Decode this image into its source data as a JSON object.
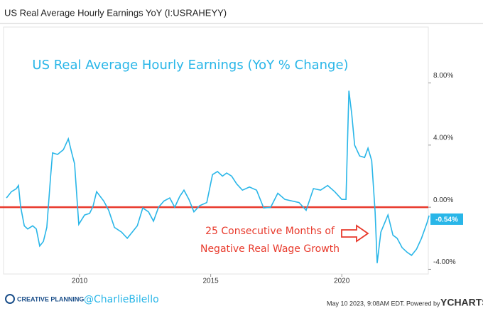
{
  "header": {
    "title": "US Real Average Hourly Earnings YoY (I:USRAHEYY)"
  },
  "chart_data": {
    "type": "line",
    "title": "US Real Average Hourly Earnings (YoY % Change)",
    "annotation": [
      "25 Consecutive Months of",
      "Negative Real Wage Growth"
    ],
    "x": [
      2007.21,
      2007.4,
      2007.59,
      2007.67,
      2007.75,
      2007.89,
      2008.02,
      2008.21,
      2008.35,
      2008.48,
      2008.62,
      2008.75,
      2008.89,
      2008.97,
      2009.16,
      2009.38,
      2009.57,
      2009.7,
      2009.81,
      2009.97,
      2010.19,
      2010.38,
      2010.51,
      2010.65,
      2010.92,
      2011.11,
      2011.33,
      2011.6,
      2011.82,
      2012.01,
      2012.2,
      2012.41,
      2012.63,
      2012.82,
      2013.01,
      2013.22,
      2013.44,
      2013.63,
      2013.82,
      2013.98,
      2014.17,
      2014.36,
      2014.58,
      2014.85,
      2015.07,
      2015.26,
      2015.45,
      2015.61,
      2015.8,
      2015.99,
      2016.21,
      2016.48,
      2016.75,
      2017.02,
      2017.29,
      2017.56,
      2017.83,
      2018.1,
      2018.37,
      2018.64,
      2018.92,
      2019.19,
      2019.46,
      2019.73,
      2020.0,
      2020.16,
      2020.27,
      2020.38,
      2020.49,
      2020.68,
      2020.87,
      2021.0,
      2021.14,
      2021.27,
      2021.35,
      2021.49,
      2021.76,
      2021.95,
      2022.11,
      2022.3,
      2022.49,
      2022.66,
      2022.85,
      2023.04,
      2023.25,
      2023.33
    ],
    "series": [
      {
        "name": "US Real Average Hourly Earnings YoY",
        "color": "#29b6e8",
        "values": [
          0.6,
          1.0,
          1.2,
          1.4,
          0.05,
          -1.2,
          -1.4,
          -1.2,
          -1.4,
          -2.5,
          -2.2,
          -1.3,
          1.9,
          3.5,
          3.4,
          3.7,
          4.4,
          3.5,
          2.8,
          -1.1,
          -0.5,
          -0.4,
          0.05,
          1.0,
          0.4,
          -0.2,
          -1.3,
          -1.6,
          -2.0,
          -1.6,
          -1.2,
          -0.05,
          -0.3,
          -0.9,
          0.0,
          0.4,
          0.6,
          0.0,
          0.7,
          1.1,
          0.5,
          -0.3,
          0.1,
          0.3,
          2.1,
          2.3,
          2.0,
          2.2,
          2.0,
          1.5,
          1.1,
          1.3,
          1.1,
          -0.05,
          0.0,
          0.9,
          0.5,
          0.4,
          0.3,
          -0.2,
          1.2,
          1.1,
          1.4,
          1.0,
          0.5,
          0.5,
          7.5,
          6.0,
          4.0,
          3.3,
          3.2,
          3.8,
          3.0,
          -0.3,
          -3.6,
          -1.6,
          -0.5,
          -1.8,
          -2.0,
          -2.6,
          -2.9,
          -3.1,
          -2.7,
          -2.0,
          -1.0,
          -0.54
        ]
      }
    ],
    "last_label": {
      "value": -0.54,
      "label": "-0.54%"
    },
    "reference_line": {
      "value": 0,
      "color": "#e8392b"
    },
    "xlim": [
      2007.1,
      2023.3
    ],
    "xticks": [
      2010,
      2015,
      2020
    ],
    "ylim": [
      -4.3,
      11.6
    ],
    "yticks": [
      {
        "value": -4,
        "label": "-4.00%"
      },
      {
        "value": 0,
        "label": "0.00%"
      },
      {
        "value": 4,
        "label": "4.00%"
      },
      {
        "value": 8,
        "label": "8.00%"
      }
    ],
    "grid": false
  },
  "footer": {
    "brand": "CREATIVE PLANNING",
    "handle": "@CharlieBilello",
    "date": "May 10 2023, 9:08AM EDT.",
    "powered": "Powered by",
    "source": "YCHARTS"
  }
}
